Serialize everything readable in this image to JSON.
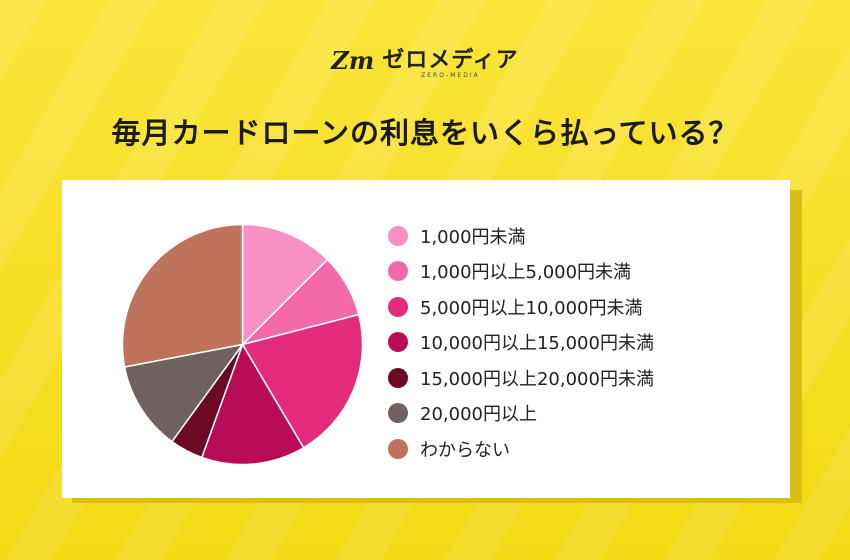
{
  "logo": {
    "mark": "Zm",
    "text": "ゼロメディア",
    "subtext": "ZERO-MEDIA"
  },
  "title": "毎月カードローンの利息をいくら払っている？",
  "chart_data": {
    "type": "pie",
    "title": "毎月カードローンの利息をいくら払っている？",
    "legend_position": "right",
    "start_angle_deg": 0,
    "direction": "clockwise",
    "slices": [
      {
        "label": "1,000円未満",
        "value": 12.5,
        "color": "#f990c4"
      },
      {
        "label": "1,000円以上5,000円未満",
        "value": 8.5,
        "color": "#f46aa9"
      },
      {
        "label": "5,000円以上10,000円未満",
        "value": 20.5,
        "color": "#e32c7c"
      },
      {
        "label": "10,000円以上15,000円未満",
        "value": 14.0,
        "color": "#b80c57"
      },
      {
        "label": "15,000円以上20,000円未満",
        "value": 4.5,
        "color": "#6c0a25"
      },
      {
        "label": "20,000円以上",
        "value": 12.0,
        "color": "#6e615f"
      },
      {
        "label": "わからない",
        "value": 28.0,
        "color": "#c0735b"
      }
    ]
  }
}
